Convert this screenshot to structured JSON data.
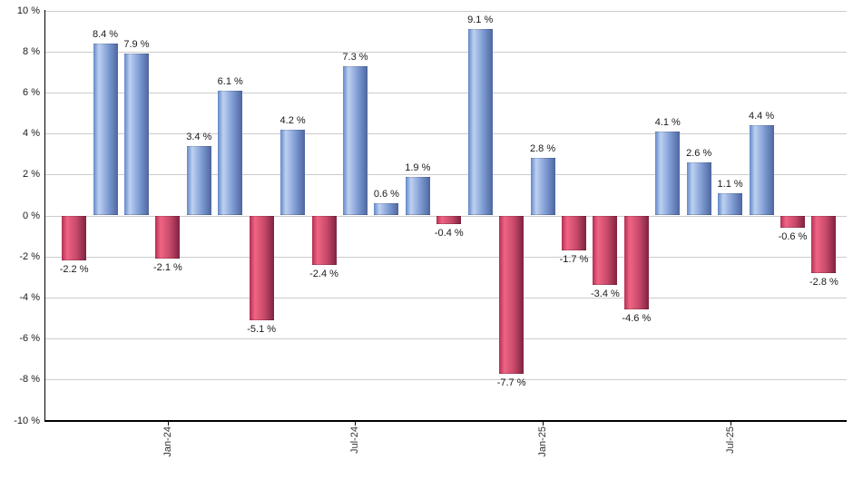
{
  "chart_data": {
    "type": "bar",
    "title": "",
    "xlabel": "",
    "ylabel": "",
    "ylim": [
      -10,
      10
    ],
    "grid": true,
    "legend": false,
    "values": [
      -2.2,
      8.4,
      7.9,
      -2.1,
      3.4,
      6.1,
      -5.1,
      4.2,
      -2.4,
      7.3,
      0.6,
      1.9,
      -0.4,
      9.1,
      -7.7,
      2.8,
      -1.7,
      -3.4,
      -4.6,
      4.1,
      2.6,
      1.1,
      4.4,
      -0.6,
      -2.8
    ],
    "bar_labels": [
      "-2.2 %",
      "8.4 %",
      "7.9 %",
      "-2.1 %",
      "3.4 %",
      "6.1 %",
      "-5.1 %",
      "4.2 %",
      "-2.4 %",
      "7.3 %",
      "0.6 %",
      "1.9 %",
      "-0.4 %",
      "9.1 %",
      "-7.7 %",
      "2.8 %",
      "-1.7 %",
      "-3.4 %",
      "-4.6 %",
      "4.1 %",
      "2.6 %",
      "1.1 %",
      "4.4 %",
      "-0.6 %",
      "-2.8 %"
    ],
    "y_ticks": [
      {
        "value": 10,
        "label": "10 %"
      },
      {
        "value": 8,
        "label": "8 %"
      },
      {
        "value": 6,
        "label": "6 %"
      },
      {
        "value": 4,
        "label": "4 %"
      },
      {
        "value": 2,
        "label": "2 %"
      },
      {
        "value": 0,
        "label": "0 %"
      },
      {
        "value": -2,
        "label": "-2 %"
      },
      {
        "value": -4,
        "label": "-4 %"
      },
      {
        "value": -6,
        "label": "-6 %"
      },
      {
        "value": -8,
        "label": "-8 %"
      },
      {
        "value": -10,
        "label": "-10 %"
      }
    ],
    "x_ticks": [
      {
        "bar_index": 3,
        "label": "Jan-24"
      },
      {
        "bar_index": 9,
        "label": "Jul-24"
      },
      {
        "bar_index": 15,
        "label": "Jan-25"
      },
      {
        "bar_index": 21,
        "label": "Jul-25"
      }
    ],
    "colors": {
      "positive_edge": "#6387c9",
      "positive_highlight": "#bdd1f1",
      "positive_mid": "#7f9cd4",
      "positive_dark": "#4e66a0",
      "negative_edge": "#b23054",
      "negative_highlight": "#f06483",
      "negative_mid": "#c84a6a",
      "negative_dark": "#7e2240",
      "gridline": "#cccccc",
      "axis": "#000000",
      "label_text": "#1a1a1a"
    }
  }
}
